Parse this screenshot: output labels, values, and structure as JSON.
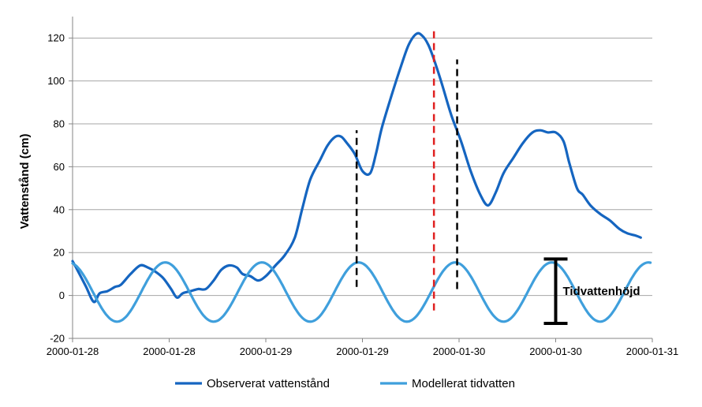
{
  "chart_data": {
    "type": "line",
    "title": "",
    "xlabel": "",
    "ylabel": "Vattenstånd (cm)",
    "ylim": [
      -20,
      130
    ],
    "yticks": [
      -20,
      0,
      20,
      40,
      60,
      80,
      100,
      120
    ],
    "xrange": [
      0,
      3
    ],
    "xticks": [
      {
        "x": 0.0,
        "label": "2000-01-28"
      },
      {
        "x": 0.5,
        "label": "2000-01-28"
      },
      {
        "x": 1.0,
        "label": "2000-01-29"
      },
      {
        "x": 1.5,
        "label": "2000-01-29"
      },
      {
        "x": 2.0,
        "label": "2000-01-30"
      },
      {
        "x": 2.5,
        "label": "2000-01-30"
      },
      {
        "x": 3.0,
        "label": "2000-01-31"
      }
    ],
    "grid": true,
    "legend": "bottom",
    "series": [
      {
        "name": "Observerat vattenstånd",
        "color": "#1565c0",
        "points": [
          [
            0.0,
            16
          ],
          [
            0.03,
            11
          ],
          [
            0.07,
            4
          ],
          [
            0.11,
            -3
          ],
          [
            0.14,
            1
          ],
          [
            0.18,
            2
          ],
          [
            0.22,
            4
          ],
          [
            0.25,
            5
          ],
          [
            0.3,
            10
          ],
          [
            0.35,
            14
          ],
          [
            0.39,
            13
          ],
          [
            0.43,
            11
          ],
          [
            0.47,
            8
          ],
          [
            0.51,
            3
          ],
          [
            0.54,
            -1
          ],
          [
            0.57,
            1
          ],
          [
            0.61,
            2
          ],
          [
            0.65,
            3
          ],
          [
            0.69,
            3
          ],
          [
            0.73,
            7
          ],
          [
            0.77,
            12
          ],
          [
            0.81,
            14
          ],
          [
            0.85,
            13
          ],
          [
            0.88,
            10
          ],
          [
            0.92,
            9
          ],
          [
            0.96,
            7
          ],
          [
            1.0,
            9
          ],
          [
            1.05,
            14
          ],
          [
            1.1,
            19
          ],
          [
            1.15,
            27
          ],
          [
            1.19,
            41
          ],
          [
            1.23,
            54
          ],
          [
            1.28,
            63
          ],
          [
            1.32,
            70
          ],
          [
            1.36,
            74
          ],
          [
            1.39,
            74
          ],
          [
            1.42,
            71
          ],
          [
            1.46,
            66
          ],
          [
            1.5,
            58
          ],
          [
            1.54,
            57
          ],
          [
            1.57,
            66
          ],
          [
            1.6,
            78
          ],
          [
            1.65,
            93
          ],
          [
            1.7,
            107
          ],
          [
            1.74,
            117
          ],
          [
            1.78,
            122
          ],
          [
            1.81,
            121
          ],
          [
            1.84,
            117
          ],
          [
            1.87,
            110
          ],
          [
            1.91,
            99
          ],
          [
            1.96,
            84
          ],
          [
            2.01,
            72
          ],
          [
            2.06,
            58
          ],
          [
            2.11,
            47
          ],
          [
            2.15,
            42
          ],
          [
            2.19,
            48
          ],
          [
            2.23,
            57
          ],
          [
            2.28,
            64
          ],
          [
            2.33,
            71
          ],
          [
            2.38,
            76
          ],
          [
            2.42,
            77
          ],
          [
            2.46,
            76
          ],
          [
            2.5,
            76
          ],
          [
            2.54,
            72
          ],
          [
            2.57,
            62
          ],
          [
            2.61,
            50
          ],
          [
            2.64,
            47
          ],
          [
            2.68,
            42
          ],
          [
            2.73,
            38
          ],
          [
            2.78,
            35
          ],
          [
            2.83,
            31
          ],
          [
            2.87,
            29
          ],
          [
            2.91,
            28
          ],
          [
            2.94,
            27
          ]
        ]
      },
      {
        "name": "Modellerat tidvatten",
        "color": "#3f9fdc",
        "type": "sinusoid",
        "amplitude": 13.8,
        "offset": 1.6,
        "period": 0.5,
        "peak_x": 1.48,
        "x_start": 0.0,
        "x_end": 2.99
      }
    ],
    "annotations": [
      {
        "type": "vline",
        "x": 1.47,
        "y_from": 4,
        "y_to": 77,
        "color": "#000000",
        "dash": true
      },
      {
        "type": "vline",
        "x": 1.87,
        "y_from": -7,
        "y_to": 124,
        "color": "#e02020",
        "dash": true
      },
      {
        "type": "vline",
        "x": 1.99,
        "y_from": 3,
        "y_to": 110,
        "color": "#000000",
        "dash": true
      },
      {
        "type": "range",
        "x": 2.5,
        "y_from": -13,
        "y_to": 17,
        "color": "#000000",
        "label": "Tidvattenhöjd"
      }
    ]
  }
}
